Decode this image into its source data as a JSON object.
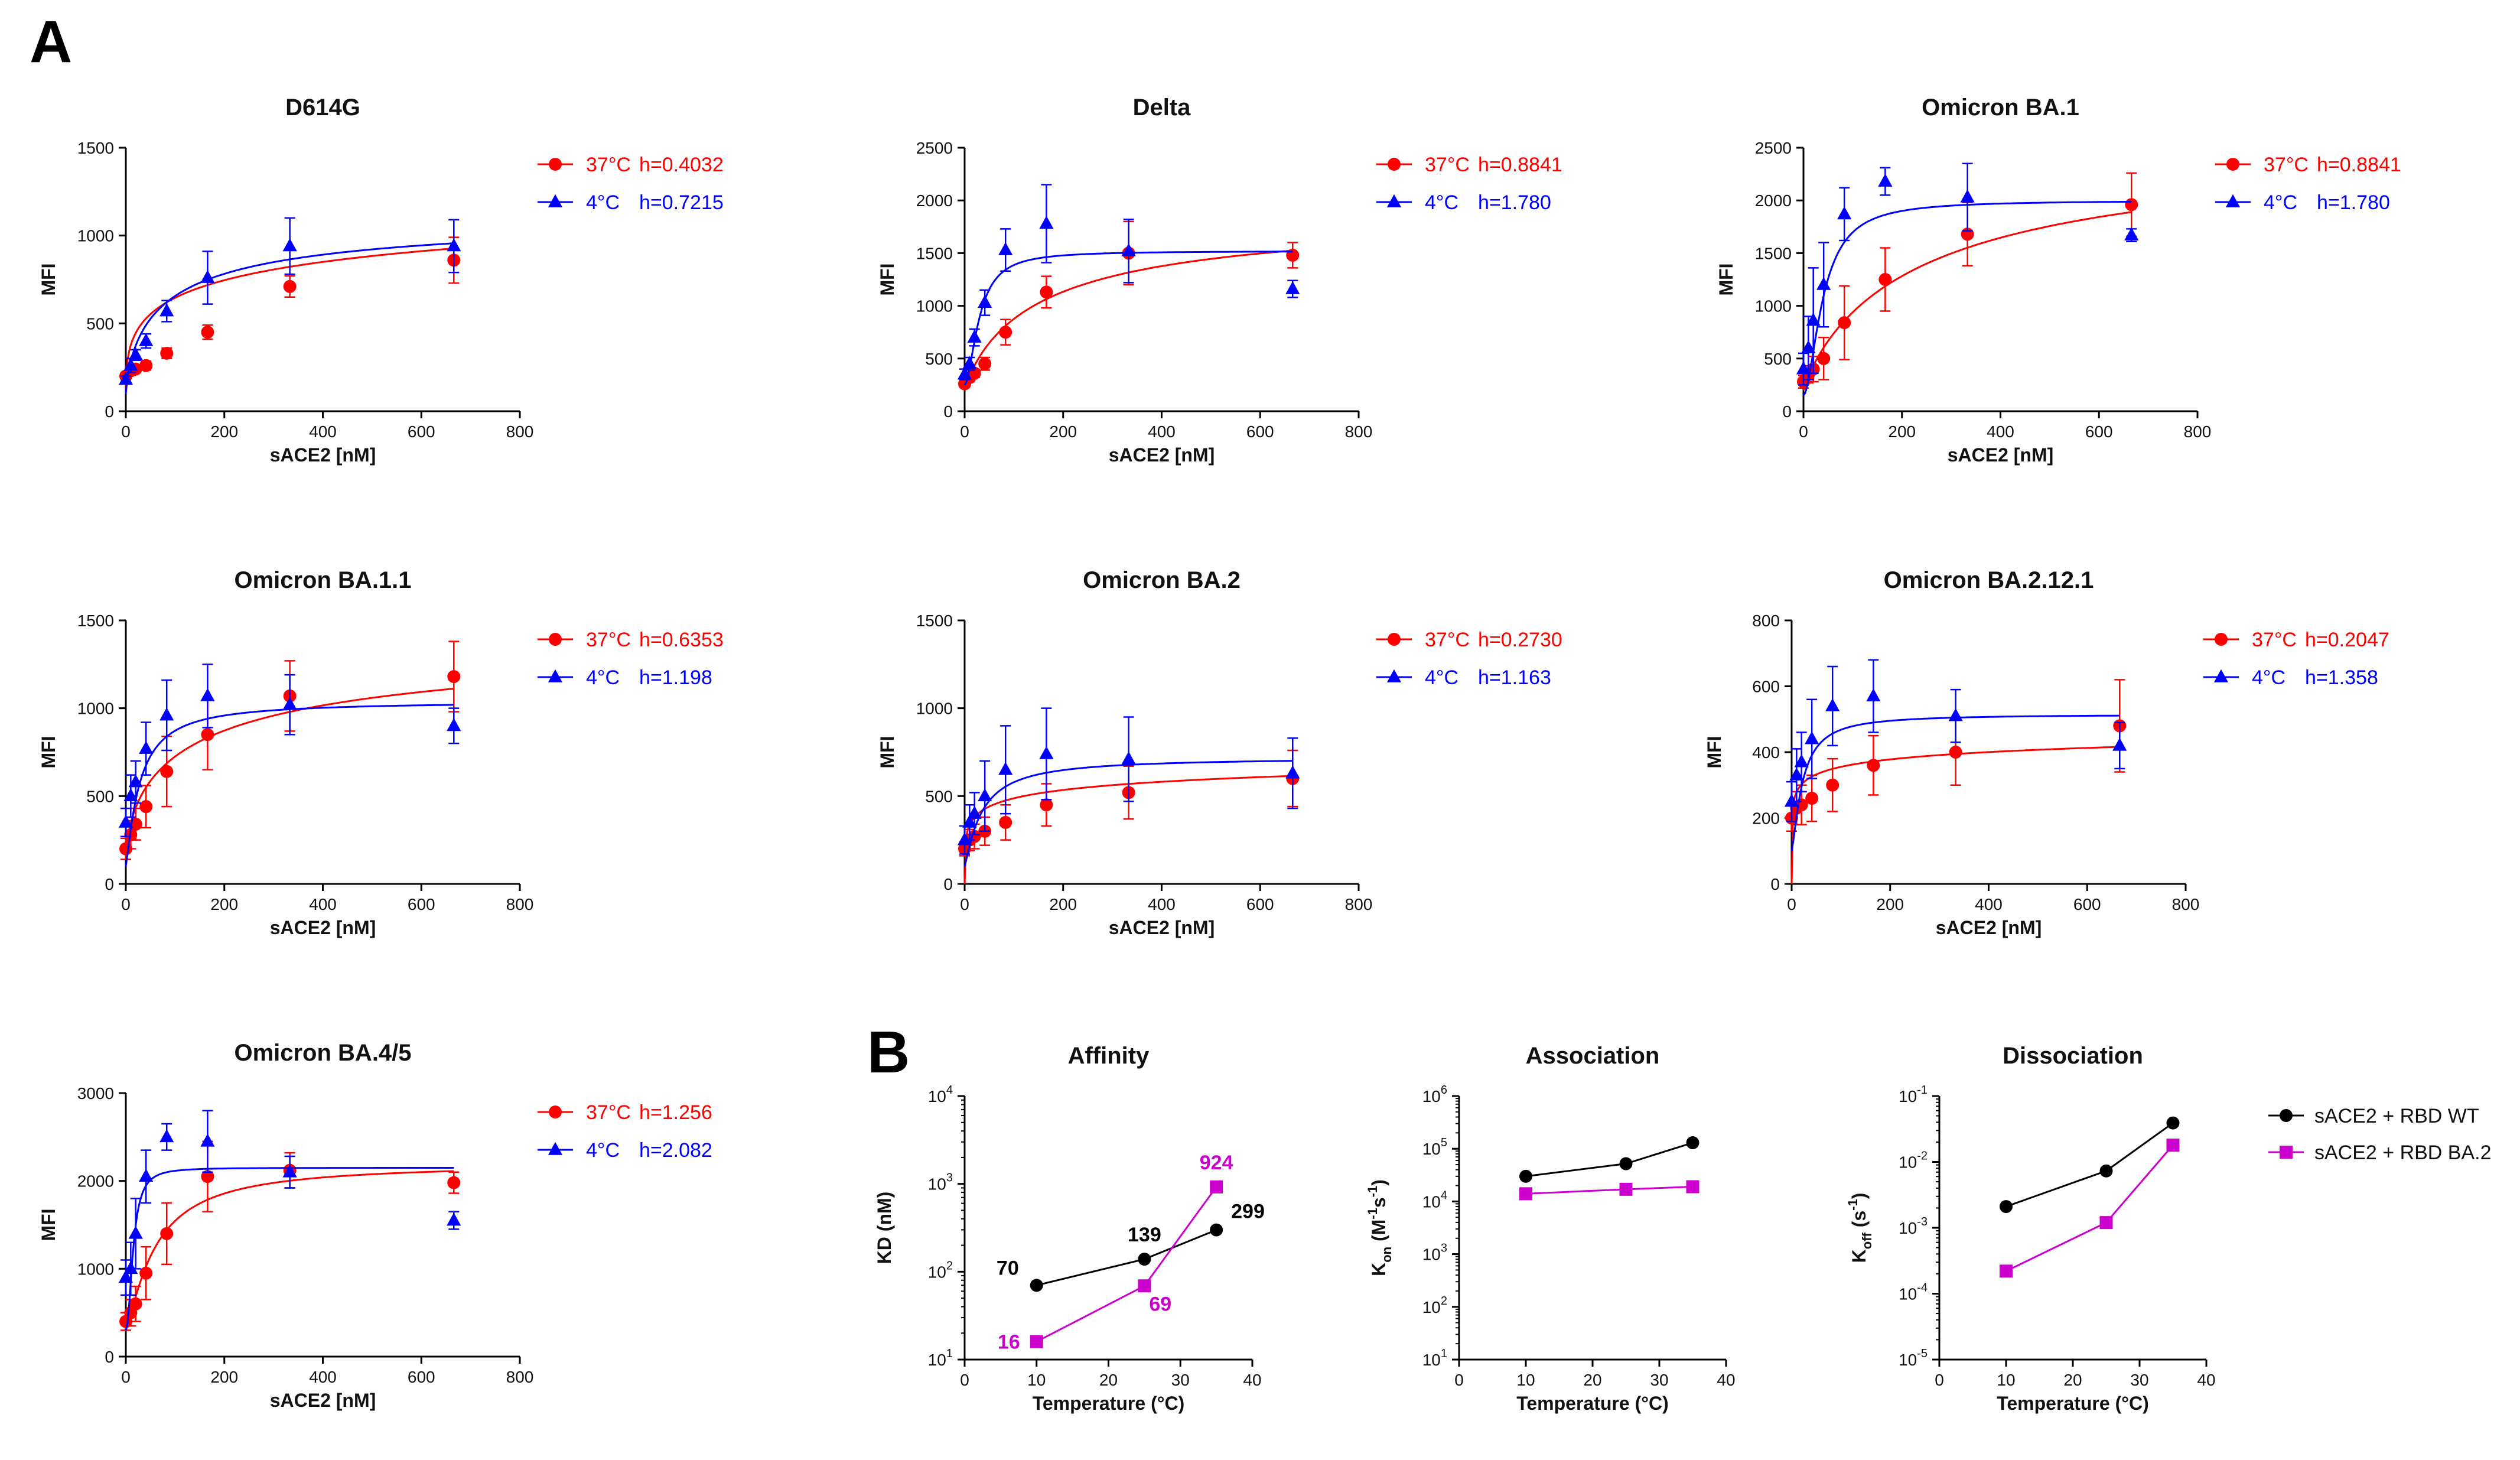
{
  "panel_labels": {
    "a": "A",
    "b": "B"
  },
  "colors": {
    "warm": "#ff0000",
    "cold": "#0000ff",
    "wt": "#000000",
    "ba2": "#cc00cc"
  },
  "chart_data": [
    {
      "type": "scatter",
      "id": "d614g",
      "title": "D614G",
      "xlabel": "sACE2 [nM]",
      "ylabel": "MFI",
      "xlim": [
        0,
        800
      ],
      "xticks": [
        0,
        200,
        400,
        600,
        800
      ],
      "ylim": [
        0,
        1500
      ],
      "yticks": [
        0,
        500,
        1000,
        1500
      ],
      "x": [
        0,
        10,
        20,
        41,
        83,
        166,
        333,
        666
      ],
      "series": [
        {
          "name": "37°C",
          "hill_label": "h=0.4032",
          "color": "#ff0000",
          "marker": "circle",
          "values": [
            200,
            230,
            240,
            260,
            330,
            450,
            710,
            860
          ],
          "errors": [
            20,
            25,
            20,
            25,
            30,
            40,
            60,
            130
          ],
          "fit": {
            "bottom": 100,
            "top": 1600,
            "ec50": 400,
            "h": 0.4032
          }
        },
        {
          "name": "4°C",
          "hill_label": "h=0.7215",
          "color": "#0000ff",
          "marker": "triangle",
          "values": [
            180,
            260,
            320,
            400,
            570,
            760,
            940,
            940
          ],
          "errors": [
            20,
            40,
            30,
            40,
            60,
            150,
            160,
            150
          ],
          "fit": {
            "bottom": 100,
            "top": 1150,
            "ec50": 85,
            "h": 0.7215
          }
        }
      ]
    },
    {
      "type": "scatter",
      "id": "delta",
      "title": "Delta",
      "xlabel": "sACE2 [nM]",
      "ylabel": "MFI",
      "xlim": [
        0,
        800
      ],
      "xticks": [
        0,
        200,
        400,
        600,
        800
      ],
      "ylim": [
        0,
        2500
      ],
      "yticks": [
        0,
        500,
        1000,
        1500,
        2000,
        2500
      ],
      "x": [
        0,
        10,
        20,
        41,
        83,
        166,
        333,
        666
      ],
      "series": [
        {
          "name": "37°C",
          "hill_label": "h=0.8841",
          "color": "#ff0000",
          "marker": "circle",
          "values": [
            260,
            320,
            360,
            450,
            750,
            1130,
            1500,
            1480
          ],
          "errors": [
            30,
            40,
            40,
            60,
            120,
            150,
            300,
            120
          ],
          "fit": {
            "bottom": 200,
            "top": 1900,
            "ec50": 160,
            "h": 0.8841
          }
        },
        {
          "name": "4°C",
          "hill_label": "h=1.780",
          "color": "#0000ff",
          "marker": "triangle",
          "values": [
            350,
            450,
            700,
            1030,
            1530,
            1780,
            1520,
            1160
          ],
          "errors": [
            50,
            60,
            80,
            120,
            200,
            370,
            300,
            80
          ],
          "fit": {
            "bottom": 250,
            "top": 1520,
            "ec50": 30,
            "h": 1.78
          }
        }
      ]
    },
    {
      "type": "scatter",
      "id": "ba1",
      "title": "Omicron BA.1",
      "xlabel": "sACE2 [nM]",
      "ylabel": "MFI",
      "xlim": [
        0,
        800
      ],
      "xticks": [
        0,
        200,
        400,
        600,
        800
      ],
      "ylim": [
        0,
        2500
      ],
      "yticks": [
        0,
        500,
        1000,
        1500,
        2000,
        2500
      ],
      "x": [
        0,
        10,
        20,
        41,
        83,
        166,
        333,
        666
      ],
      "series": [
        {
          "name": "37°C",
          "hill_label": "h=0.8841",
          "color": "#ff0000",
          "marker": "circle",
          "values": [
            280,
            350,
            400,
            500,
            840,
            1250,
            1680,
            1960
          ],
          "errors": [
            60,
            80,
            120,
            200,
            350,
            300,
            300,
            300
          ],
          "fit": {
            "bottom": 200,
            "top": 2600,
            "ec50": 250,
            "h": 0.8841
          }
        },
        {
          "name": "4°C",
          "hill_label": "h=1.780",
          "color": "#0000ff",
          "marker": "triangle",
          "values": [
            400,
            600,
            860,
            1200,
            1870,
            2180,
            2030,
            1670
          ],
          "errors": [
            150,
            300,
            500,
            400,
            250,
            130,
            320,
            60
          ],
          "fit": {
            "bottom": 150,
            "top": 2000,
            "ec50": 40,
            "h": 1.78
          }
        }
      ]
    },
    {
      "type": "scatter",
      "id": "ba11",
      "title": "Omicron BA.1.1",
      "xlabel": "sACE2 [nM]",
      "ylabel": "MFI",
      "xlim": [
        0,
        800
      ],
      "xticks": [
        0,
        200,
        400,
        600,
        800
      ],
      "ylim": [
        0,
        1500
      ],
      "yticks": [
        0,
        500,
        1000,
        1500
      ],
      "x": [
        0,
        10,
        20,
        41,
        83,
        166,
        333,
        666
      ],
      "series": [
        {
          "name": "37°C",
          "hill_label": "h=0.6353",
          "color": "#ff0000",
          "marker": "circle",
          "values": [
            200,
            280,
            340,
            440,
            640,
            850,
            1070,
            1180
          ],
          "errors": [
            60,
            80,
            90,
            120,
            200,
            200,
            200,
            200
          ],
          "fit": {
            "bottom": 150,
            "top": 1500,
            "ec50": 160,
            "h": 0.6353
          }
        },
        {
          "name": "4°C",
          "hill_label": "h=1.198",
          "color": "#0000ff",
          "marker": "triangle",
          "values": [
            350,
            500,
            580,
            770,
            960,
            1070,
            1020,
            900
          ],
          "errors": [
            80,
            120,
            120,
            150,
            200,
            180,
            170,
            100
          ],
          "fit": {
            "bottom": 100,
            "top": 1040,
            "ec50": 28,
            "h": 1.198
          }
        }
      ]
    },
    {
      "type": "scatter",
      "id": "ba2",
      "title": "Omicron BA.2",
      "xlabel": "sACE2 [nM]",
      "ylabel": "MFI",
      "xlim": [
        0,
        800
      ],
      "xticks": [
        0,
        200,
        400,
        600,
        800
      ],
      "ylim": [
        0,
        1500
      ],
      "yticks": [
        0,
        500,
        1000,
        1500
      ],
      "x": [
        0,
        10,
        20,
        41,
        83,
        166,
        333,
        666
      ],
      "series": [
        {
          "name": "37°C",
          "hill_label": "h=0.2730",
          "color": "#ff0000",
          "marker": "circle",
          "values": [
            200,
            250,
            270,
            300,
            350,
            450,
            520,
            600
          ],
          "errors": [
            40,
            60,
            70,
            80,
            100,
            120,
            150,
            160
          ],
          "fit": {
            "bottom": 0,
            "top": 1000,
            "ec50": 120,
            "h": 0.273
          }
        },
        {
          "name": "4°C",
          "hill_label": "h=1.163",
          "color": "#0000ff",
          "marker": "triangle",
          "values": [
            250,
            350,
            400,
            500,
            650,
            740,
            710,
            630
          ],
          "errors": [
            80,
            100,
            120,
            200,
            250,
            260,
            240,
            200
          ],
          "fit": {
            "bottom": 100,
            "top": 720,
            "ec50": 35,
            "h": 1.163
          }
        }
      ]
    },
    {
      "type": "scatter",
      "id": "ba2121",
      "title": "Omicron BA.2.12.1",
      "xlabel": "sACE2 [nM]",
      "ylabel": "MFI",
      "xlim": [
        0,
        800
      ],
      "xticks": [
        0,
        200,
        400,
        600,
        800
      ],
      "ylim": [
        0,
        800
      ],
      "yticks": [
        0,
        200,
        400,
        600,
        800
      ],
      "x": [
        0,
        10,
        20,
        41,
        83,
        166,
        333,
        666
      ],
      "series": [
        {
          "name": "37°C",
          "hill_label": "h=0.2047",
          "color": "#ff0000",
          "marker": "circle",
          "values": [
            200,
            230,
            240,
            260,
            300,
            360,
            400,
            480
          ],
          "errors": [
            40,
            50,
            60,
            70,
            80,
            90,
            100,
            140
          ],
          "fit": {
            "bottom": 0,
            "top": 650,
            "ec50": 40,
            "h": 0.2047
          }
        },
        {
          "name": "4°C",
          "hill_label": "h=1.358",
          "color": "#0000ff",
          "marker": "triangle",
          "values": [
            250,
            330,
            370,
            440,
            540,
            570,
            510,
            420
          ],
          "errors": [
            60,
            80,
            90,
            120,
            120,
            110,
            80,
            70
          ],
          "fit": {
            "bottom": 100,
            "top": 515,
            "ec50": 22,
            "h": 1.358
          }
        }
      ]
    },
    {
      "type": "scatter",
      "id": "ba45",
      "title": "Omicron BA.4/5",
      "xlabel": "sACE2 [nM]",
      "ylabel": "MFI",
      "xlim": [
        0,
        800
      ],
      "xticks": [
        0,
        200,
        400,
        600,
        800
      ],
      "ylim": [
        0,
        3000
      ],
      "yticks": [
        0,
        1000,
        2000,
        3000
      ],
      "x": [
        0,
        10,
        20,
        41,
        83,
        166,
        333,
        666
      ],
      "series": [
        {
          "name": "37°C",
          "hill_label": "h=1.256",
          "color": "#ff0000",
          "marker": "circle",
          "values": [
            400,
            500,
            600,
            950,
            1400,
            2050,
            2120,
            1980
          ],
          "errors": [
            100,
            150,
            200,
            300,
            350,
            400,
            200,
            120
          ],
          "fit": {
            "bottom": 300,
            "top": 2200,
            "ec50": 60,
            "h": 1.256
          }
        },
        {
          "name": "4°C",
          "hill_label": "h=2.082",
          "color": "#0000ff",
          "marker": "triangle",
          "values": [
            900,
            1000,
            1400,
            2050,
            2500,
            2450,
            2100,
            1550
          ],
          "errors": [
            200,
            300,
            400,
            300,
            150,
            350,
            180,
            100
          ],
          "fit": {
            "bottom": 300,
            "top": 2150,
            "ec50": 15,
            "h": 2.082
          }
        }
      ]
    },
    {
      "type": "line",
      "id": "affinity",
      "title": "Affinity",
      "xlabel": "Temperature (°C)",
      "ylabel": "KD (nM)",
      "xlim": [
        0,
        40
      ],
      "xticks": [
        0,
        10,
        20,
        30,
        40
      ],
      "ylog": true,
      "ylim_exp": [
        1,
        4
      ],
      "ytick_exps": [
        1,
        2,
        3,
        4
      ],
      "x": [
        10,
        25,
        35
      ],
      "series": [
        {
          "name": "sACE2 + RBD WT",
          "color": "#000000",
          "marker": "circle",
          "values": [
            70,
            139,
            299
          ],
          "labels": [
            "70",
            "139",
            "299"
          ]
        },
        {
          "name": "sACE2 + RBD BA.2",
          "color": "#cc00cc",
          "marker": "square",
          "values": [
            16,
            69,
            924
          ],
          "labels": [
            "16",
            "69",
            "924"
          ]
        }
      ]
    },
    {
      "type": "line",
      "id": "association",
      "title": "Association",
      "xlabel": "Temperature (°C)",
      "ylabel_main": "K",
      "ylabel_sub": "on",
      "ylabel_rest": " (M",
      "ylabel_sup1": "-1",
      "ylabel_mid": "s",
      "ylabel_sup2": "-1",
      "ylabel_end": ")",
      "xlim": [
        0,
        40
      ],
      "xticks": [
        0,
        10,
        20,
        30,
        40
      ],
      "ylog": true,
      "ylim_exp": [
        1,
        6
      ],
      "ytick_exps": [
        1,
        2,
        3,
        4,
        5,
        6
      ],
      "x": [
        10,
        25,
        35
      ],
      "series": [
        {
          "name": "sACE2 + RBD WT",
          "color": "#000000",
          "marker": "circle",
          "values": [
            30000,
            52000,
            130000
          ]
        },
        {
          "name": "sACE2 + RBD BA.2",
          "color": "#cc00cc",
          "marker": "square",
          "values": [
            14000,
            17000,
            19000
          ]
        }
      ]
    },
    {
      "type": "line",
      "id": "dissociation",
      "title": "Dissociation",
      "xlabel": "Temperature (°C)",
      "ylabel_main": "K",
      "ylabel_sub": "off",
      "ylabel_rest": " (s",
      "ylabel_sup1": "-1",
      "ylabel_end": ")",
      "xlim": [
        0,
        40
      ],
      "xticks": [
        0,
        10,
        20,
        30,
        40
      ],
      "ylog": true,
      "ylim_exp": [
        -5,
        -1
      ],
      "ytick_exps": [
        -5,
        -4,
        -3,
        -2,
        -1
      ],
      "x": [
        10,
        25,
        35
      ],
      "series": [
        {
          "name": "sACE2 + RBD WT",
          "color": "#000000",
          "marker": "circle",
          "values": [
            0.0021,
            0.0073,
            0.039
          ]
        },
        {
          "name": "sACE2 + RBD BA.2",
          "color": "#cc00cc",
          "marker": "square",
          "values": [
            0.00022,
            0.0012,
            0.018
          ]
        }
      ]
    }
  ],
  "b_legend": [
    {
      "label": "sACE2 + RBD WT",
      "color": "#000000",
      "marker": "circle"
    },
    {
      "label": "sACE2 + RBD BA.2",
      "color": "#cc00cc",
      "marker": "square"
    }
  ]
}
